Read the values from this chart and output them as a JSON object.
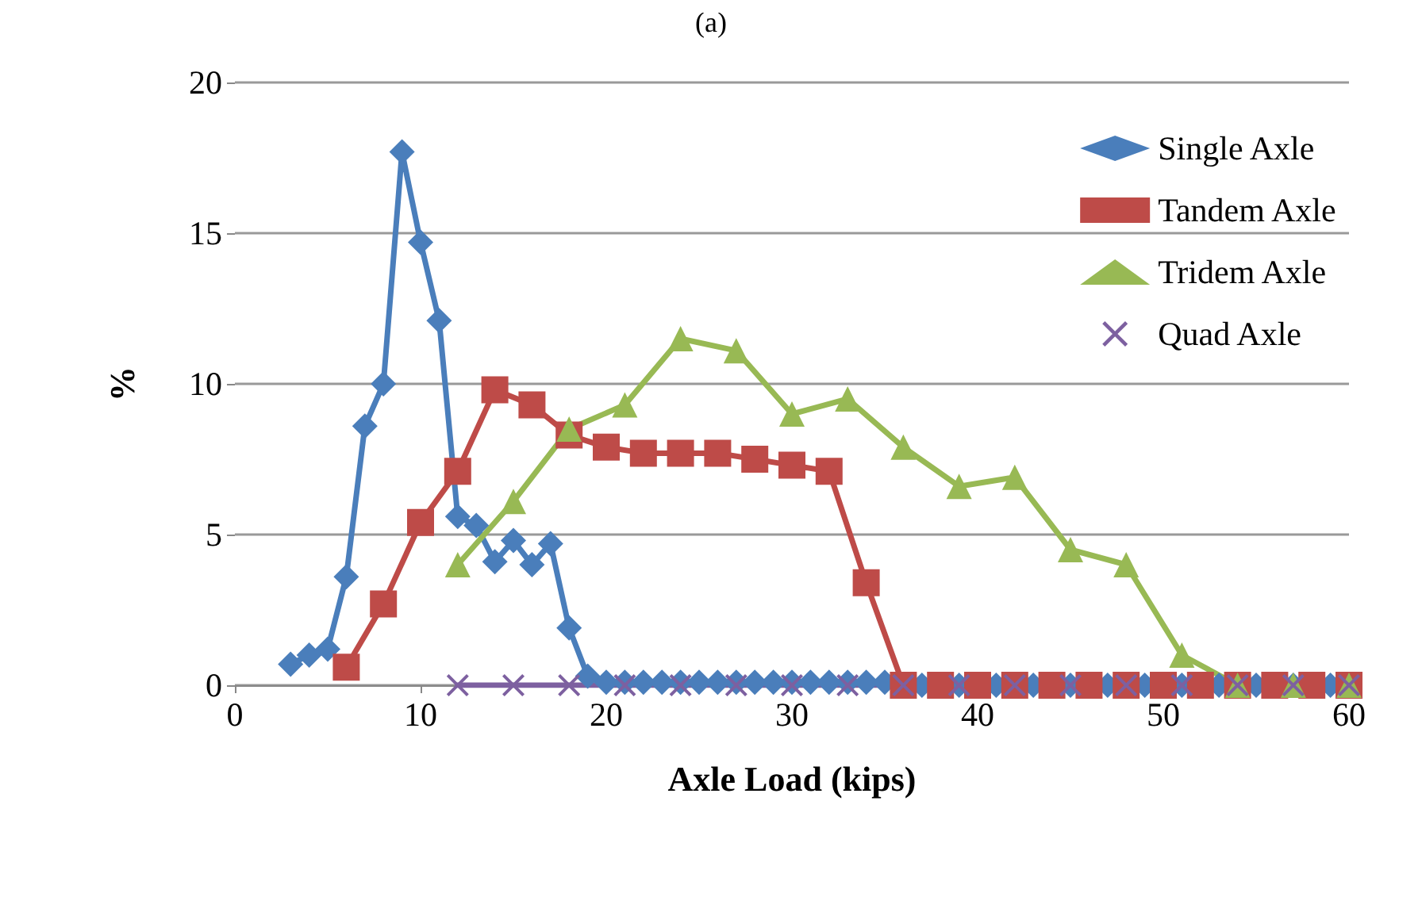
{
  "chart_data": {
    "type": "line",
    "title": "(a)",
    "xlabel": "Axle Load (kips)",
    "ylabel": "%",
    "xlim": [
      0,
      60
    ],
    "xticks": [
      0,
      10,
      20,
      30,
      40,
      50,
      60
    ],
    "ylim": [
      0,
      20
    ],
    "yticks": [
      0,
      5,
      10,
      15,
      20
    ],
    "grid": "y",
    "legend": "top right",
    "series": [
      {
        "name": "Single Axle",
        "color": "#4a7ebb",
        "marker": "diamond",
        "x": [
          3,
          4,
          5,
          6,
          7,
          8,
          9,
          10,
          11,
          12,
          13,
          14,
          15,
          16,
          17,
          18,
          19,
          20,
          21,
          22,
          23,
          24,
          25,
          26,
          27,
          28,
          29,
          30,
          31,
          32,
          33,
          34,
          35,
          36,
          37,
          38,
          39,
          40,
          41,
          42,
          43,
          44,
          45,
          46,
          47,
          48,
          49,
          50,
          51,
          52,
          53,
          54,
          55,
          56,
          57,
          58,
          59,
          60
        ],
        "values": [
          0.7,
          1.0,
          1.2,
          3.6,
          8.6,
          10.0,
          17.7,
          14.7,
          12.1,
          5.6,
          5.3,
          4.1,
          4.8,
          4.0,
          4.7,
          1.9,
          0.3,
          0.1,
          0.1,
          0.1,
          0.1,
          0.1,
          0.1,
          0.1,
          0.1,
          0.1,
          0.1,
          0.1,
          0.1,
          0.1,
          0.1,
          0.1,
          0.1,
          0,
          0,
          0,
          0,
          0,
          0,
          0,
          0,
          0,
          0,
          0,
          0,
          0,
          0,
          0,
          0,
          0,
          0,
          0,
          0,
          0,
          0,
          0,
          0,
          0
        ]
      },
      {
        "name": "Tandem Axle",
        "color": "#be4b48",
        "marker": "square",
        "x": [
          6,
          8,
          10,
          12,
          14,
          16,
          18,
          20,
          22,
          24,
          26,
          28,
          30,
          32,
          34,
          36,
          38,
          40,
          42,
          44,
          46,
          48,
          50,
          52,
          54,
          56,
          58,
          60
        ],
        "values": [
          0.6,
          2.7,
          5.4,
          7.1,
          9.8,
          9.3,
          8.3,
          7.9,
          7.7,
          7.7,
          7.7,
          7.5,
          7.3,
          7.1,
          3.4,
          0,
          0,
          0,
          0,
          0,
          0,
          0,
          0,
          0,
          0,
          0,
          0,
          0
        ]
      },
      {
        "name": "Tridem Axle",
        "color": "#98b954",
        "marker": "triangle",
        "x": [
          12,
          15,
          18,
          21,
          24,
          27,
          30,
          33,
          36,
          39,
          42,
          45,
          48,
          51,
          54,
          57,
          60
        ],
        "values": [
          4.0,
          6.1,
          8.5,
          9.3,
          11.5,
          11.1,
          9.0,
          9.5,
          7.9,
          6.6,
          6.9,
          4.5,
          4.0,
          1.0,
          0,
          0,
          0
        ]
      },
      {
        "name": "Quad Axle",
        "color": "#7d60a0",
        "marker": "cross",
        "x": [
          12,
          15,
          18,
          21,
          24,
          27,
          30,
          33,
          36,
          39,
          42,
          45,
          48,
          51,
          54,
          57,
          60
        ],
        "values": [
          0,
          0,
          0,
          0,
          0,
          0,
          0,
          0,
          0,
          0,
          0,
          0,
          0,
          0,
          0,
          0,
          0
        ]
      }
    ]
  }
}
